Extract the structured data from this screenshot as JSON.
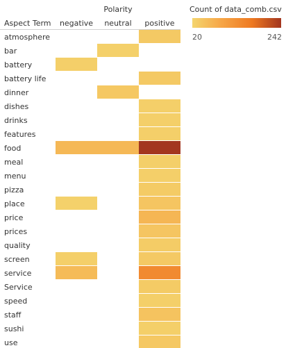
{
  "chart_data": {
    "type": "heatmap",
    "column_group_title": "Polarity",
    "row_axis_title": "Aspect Term",
    "columns": [
      "negative",
      "neutral",
      "positive"
    ],
    "rows": [
      "atmosphere",
      "bar",
      "battery",
      "battery life",
      "dinner",
      "dishes",
      "drinks",
      "features",
      "food",
      "meal",
      "menu",
      "pizza",
      "place",
      "price",
      "prices",
      "quality",
      "screen",
      "service",
      "Service",
      "speed",
      "staff",
      "sushi",
      "use"
    ],
    "values": [
      [
        null,
        null,
        38
      ],
      [
        null,
        28,
        null
      ],
      [
        30,
        null,
        null
      ],
      [
        null,
        null,
        38
      ],
      [
        null,
        40,
        null
      ],
      [
        null,
        null,
        30
      ],
      [
        null,
        null,
        30
      ],
      [
        null,
        null,
        30
      ],
      [
        65,
        65,
        242
      ],
      [
        null,
        null,
        30
      ],
      [
        null,
        null,
        30
      ],
      [
        null,
        null,
        36
      ],
      [
        26,
        null,
        44
      ],
      [
        null,
        null,
        68
      ],
      [
        null,
        null,
        44
      ],
      [
        null,
        null,
        34
      ],
      [
        30,
        null,
        38
      ],
      [
        60,
        null,
        140
      ],
      [
        null,
        null,
        36
      ],
      [
        null,
        null,
        30
      ],
      [
        null,
        null,
        48
      ],
      [
        null,
        null,
        30
      ],
      [
        null,
        null,
        40
      ]
    ],
    "color_scale": {
      "title": "Count of data_comb.csv",
      "min": 20,
      "max": 242,
      "min_label": "20",
      "max_label": "242",
      "colors": [
        "#f4d56e",
        "#f6a546",
        "#ee7a22",
        "#a3361f"
      ]
    }
  }
}
